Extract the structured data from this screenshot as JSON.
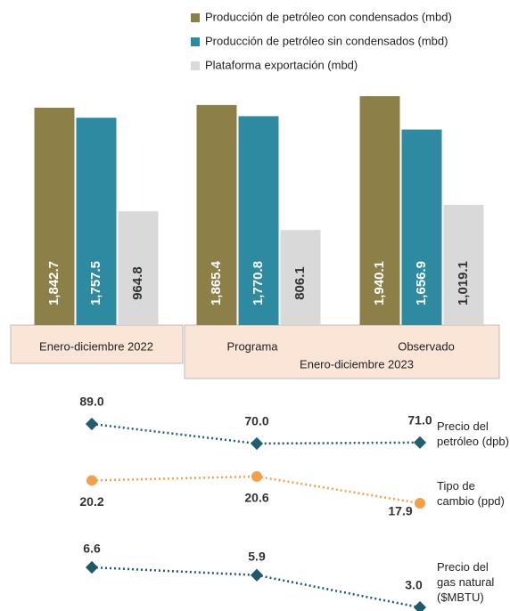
{
  "chart_data": [
    {
      "type": "bar",
      "categories": [
        "Enero-diciembre 2022",
        "Programa",
        "Observado"
      ],
      "group_label": "Enero-diciembre 2023",
      "series": [
        {
          "name": "Producción de petróleo con condensados (mbd)",
          "color": "#8c8048",
          "values": [
            1842.7,
            1865.4,
            1940.1
          ],
          "value_labels": [
            "1,842.7",
            "1,865.4",
            "1,940.1"
          ]
        },
        {
          "name": "Producción de petróleo sin condensados (mbd)",
          "color": "#2e8aa0",
          "values": [
            1757.5,
            1770.8,
            1656.9
          ],
          "value_labels": [
            "1,757.5",
            "1,770.8",
            "1,656.9"
          ]
        },
        {
          "name": "Plataforma exportación (mbd)",
          "color": "#d9d9d9",
          "values": [
            964.8,
            806.1,
            1019.1
          ],
          "value_labels": [
            "964.8",
            "806.1",
            "1,019.1"
          ]
        }
      ]
    },
    {
      "type": "line",
      "series": [
        {
          "name": "Precio del petróleo (dpb)",
          "color": "#1f5f6e",
          "values": [
            89.0,
            70.0,
            71.0
          ],
          "value_labels": [
            "89.0",
            "70.0",
            "71.0"
          ]
        },
        {
          "name": "Tipo de cambio (ppd)",
          "color": "#f4a04a",
          "values": [
            20.2,
            20.6,
            17.9
          ],
          "value_labels": [
            "20.2",
            "20.6",
            "17.9"
          ]
        },
        {
          "name": "Precio del gas natural ($MBTU)",
          "color": "#1f5a6a",
          "values": [
            6.6,
            5.9,
            3.0
          ],
          "value_labels": [
            "6.6",
            "5.9",
            "3.0"
          ]
        }
      ]
    }
  ]
}
